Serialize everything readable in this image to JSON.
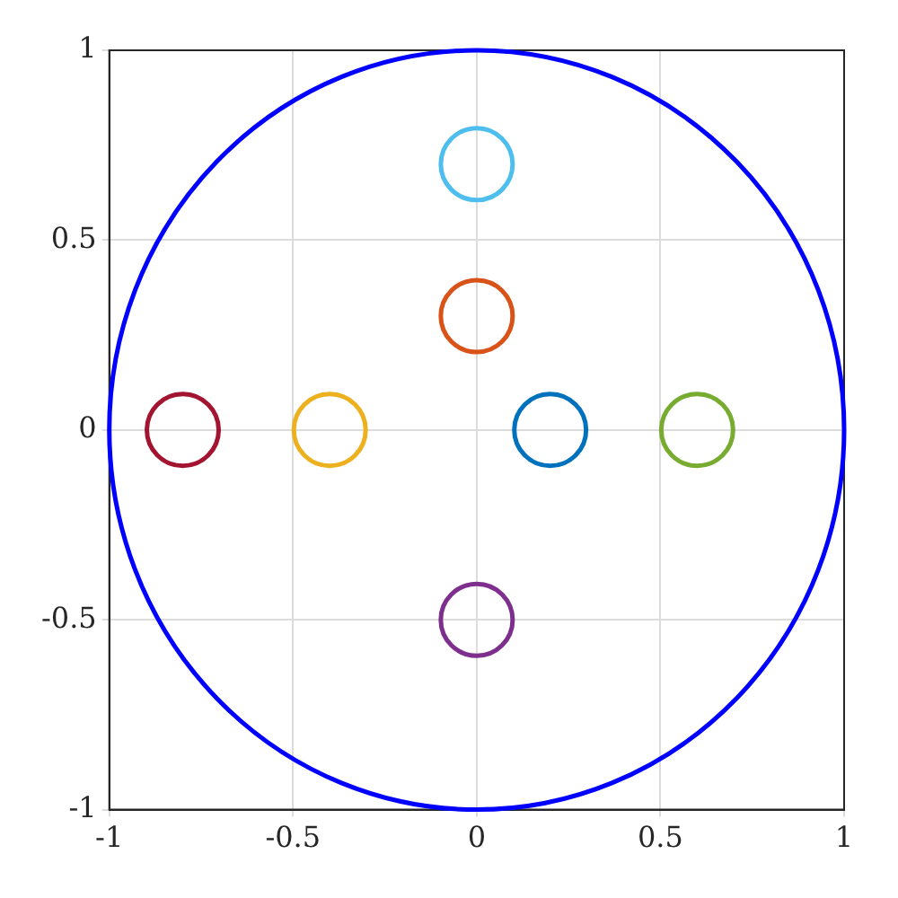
{
  "chart_data": {
    "type": "scatter",
    "marker": "circle",
    "grid": true,
    "legend": false,
    "xlim": [
      -1,
      1
    ],
    "ylim": [
      -1,
      1
    ],
    "xticks": [
      -1,
      -0.5,
      0,
      0.5,
      1
    ],
    "yticks": [
      -1,
      -0.5,
      0,
      0.5,
      1
    ],
    "series": [
      {
        "x": [
          -0.8,
          -0.4,
          0.2,
          0.6,
          0,
          0,
          0
        ],
        "values": [
          0,
          0,
          0,
          0,
          0.7,
          0.3,
          -0.5
        ],
        "colors": [
          "#a2142f",
          "#edb120",
          "#0072bd",
          "#77ac30",
          "#4dbeee",
          "#d95319",
          "#7e2f8e"
        ]
      }
    ]
  }
}
